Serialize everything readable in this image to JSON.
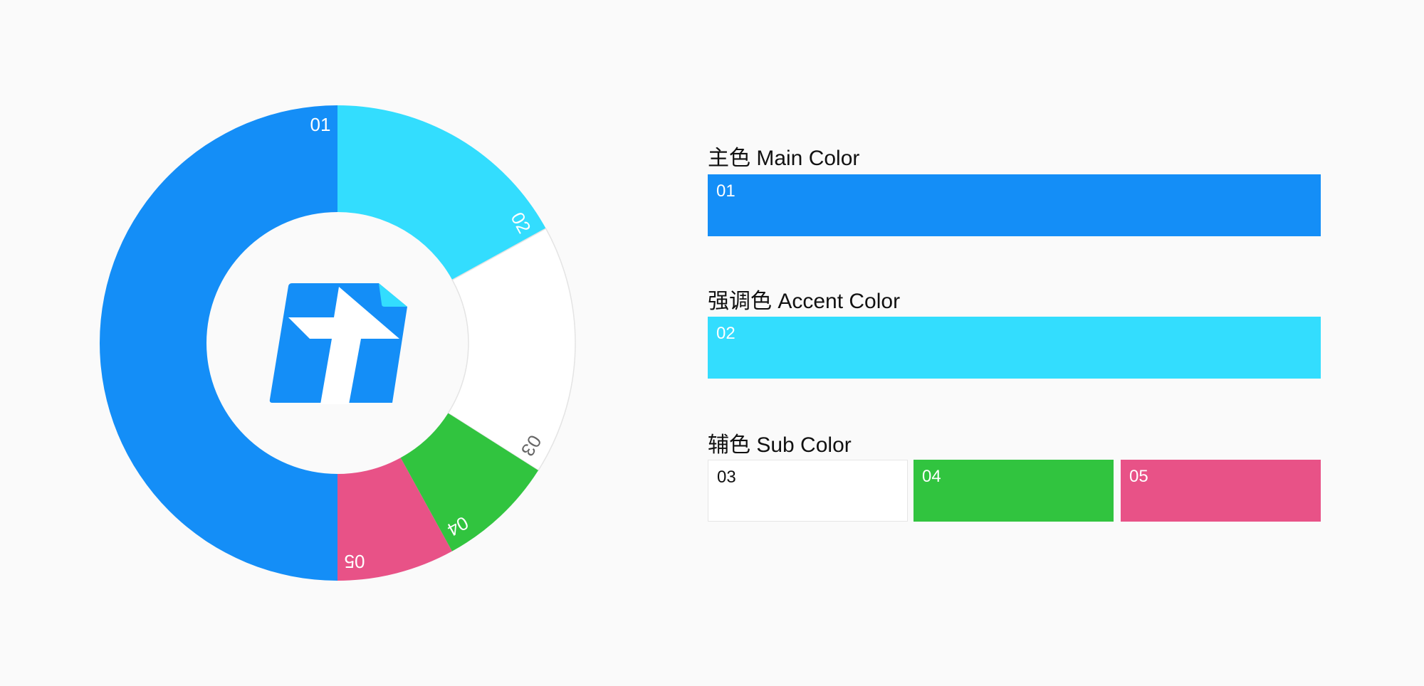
{
  "chart_data": {
    "type": "pie",
    "style": "donut",
    "categories": [
      "01",
      "02",
      "03",
      "04",
      "05"
    ],
    "values": [
      50,
      17,
      17,
      8,
      8
    ],
    "colors": [
      "#148ef7",
      "#33ddfe",
      "#ffffff",
      "#31c43f",
      "#e85287"
    ],
    "label_colors": [
      "#ffffff",
      "#ffffff",
      "#666666",
      "#ffffff",
      "#ffffff"
    ],
    "center_icon": "app-logo-icon"
  },
  "sections": {
    "main": {
      "title": "主色 Main Color",
      "swatches": [
        {
          "label": "01",
          "color": "#148ef7"
        }
      ]
    },
    "accent": {
      "title": "强调色 Accent Color",
      "swatches": [
        {
          "label": "02",
          "color": "#33ddfe"
        }
      ]
    },
    "sub": {
      "title": "辅色 Sub Color",
      "swatches": [
        {
          "label": "03",
          "color": "#ffffff"
        },
        {
          "label": "04",
          "color": "#31c43f"
        },
        {
          "label": "05",
          "color": "#e85287"
        }
      ]
    }
  }
}
